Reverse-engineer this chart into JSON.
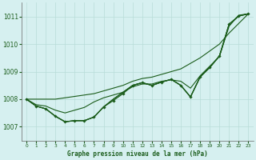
{
  "title": "Graphe pression niveau de la mer (hPa)",
  "background_color": "#d6f0f0",
  "grid_color": "#b8ddd8",
  "line_color": "#1a5c1a",
  "xlim": [
    -0.5,
    23.5
  ],
  "ylim": [
    1006.5,
    1011.5
  ],
  "yticks": [
    1007,
    1008,
    1009,
    1010,
    1011
  ],
  "x_labels": [
    "0",
    "1",
    "2",
    "3",
    "4",
    "5",
    "6",
    "7",
    "8",
    "9",
    "10",
    "11",
    "12",
    "13",
    "14",
    "15",
    "16",
    "17",
    "18",
    "19",
    "20",
    "21",
    "22",
    "23"
  ],
  "series_upper": [
    1008.0,
    1007.8,
    1007.75,
    1007.6,
    1007.5,
    1007.6,
    1007.7,
    1007.9,
    1008.05,
    1008.15,
    1008.25,
    1008.45,
    1008.55,
    1008.55,
    1008.65,
    1008.7,
    1008.65,
    1008.4,
    1008.85,
    1009.2,
    1009.55,
    1010.65,
    1011.05,
    1011.1
  ],
  "series_marked": [
    1008.0,
    1007.75,
    1007.65,
    1007.38,
    1007.18,
    1007.22,
    1007.22,
    1007.35,
    1007.72,
    1007.95,
    1008.2,
    1008.5,
    1008.6,
    1008.5,
    1008.62,
    1008.72,
    1008.5,
    1008.08,
    1008.8,
    1009.15,
    1009.57,
    1010.72,
    1011.02,
    1011.1
  ],
  "series_lower1": [
    1008.0,
    1007.75,
    1007.65,
    1007.38,
    1007.18,
    1007.22,
    1007.22,
    1007.35,
    1007.72,
    1008.0,
    1008.25,
    1008.5,
    1008.6,
    1008.5,
    1008.62,
    1008.72,
    1008.5,
    1008.08,
    1008.82,
    1009.15,
    1009.57,
    1010.72,
    1011.02,
    1011.1
  ],
  "series_lower2": [
    1008.0,
    1007.75,
    1007.65,
    1007.38,
    1007.18,
    1007.22,
    1007.22,
    1007.35,
    1007.72,
    1008.0,
    1008.25,
    1008.5,
    1008.6,
    1008.5,
    1008.62,
    1008.72,
    1008.5,
    1008.08,
    1008.82,
    1009.15,
    1009.57,
    1010.72,
    1011.02,
    1011.1
  ],
  "series_steep": [
    1008.0,
    1008.0,
    1008.0,
    1008.0,
    1008.05,
    1008.1,
    1008.15,
    1008.2,
    1008.3,
    1008.4,
    1008.5,
    1008.65,
    1008.75,
    1008.8,
    1008.9,
    1009.0,
    1009.1,
    1009.3,
    1009.5,
    1009.75,
    1010.0,
    1010.4,
    1010.75,
    1011.1
  ]
}
